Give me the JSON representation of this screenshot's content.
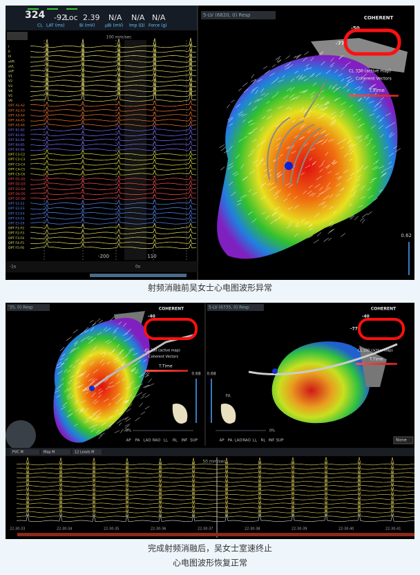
{
  "figure1": {
    "header": {
      "cl": "324",
      "cl_label": "CL",
      "lat": "-92",
      "lat_label": "LAT (ms)",
      "loc": "Loc",
      "bi": "2.39",
      "bi_label": "Bi (mV)",
      "ubi": "N/A",
      "ubi_label": "µBi (mV)",
      "imp": "N/A",
      "imp_label": "Imp (Ω)",
      "force": "N/A",
      "force_label": "Force (g)"
    },
    "ecg": {
      "speed": "100 mm/sec",
      "leads": [
        "I",
        "II",
        "III",
        "aVR",
        "aVL",
        "aVF",
        "V1",
        "V2",
        "V3",
        "V4",
        "V5",
        "V6",
        "OPT A1-A2",
        "OPT A2-A3",
        "OPT A3-A4",
        "OPT A4-A5",
        "OPT A5-A6",
        "OPT B1-B2",
        "OPT B2-B3",
        "OPT B3-B4",
        "OPT B4-B5",
        "OPT B5-B6",
        "OPT C1-C2",
        "OPT C2-C3",
        "OPT C3-C4",
        "OPT C4-C5",
        "OPT C5-C6",
        "OPT D1-D2",
        "OPT D2-D3",
        "OPT D3-D4",
        "OPT D4-D5",
        "OPT D5-D6",
        "OPT E1-E2",
        "OPT E2-E3",
        "OPT E3-E4",
        "OPT E4-E5",
        "OPT E5-E6",
        "OPT F1-F2",
        "OPT F2-F3",
        "OPT F3-F4",
        "OPT F4-F5",
        "OPT F5-F6"
      ],
      "start": "-1s",
      "mark_left": "-200",
      "zero": "0s",
      "mark_right": "110"
    },
    "map": {
      "title": "5-LV (6820, 0) Resp",
      "mode": "COHERENT",
      "scale_top": "-50",
      "scale_bottom": "-77",
      "cl": "CL   330   (active map)",
      "vectors": "Coherent Vectors",
      "ttime": "T.Time",
      "slider": "0.62"
    }
  },
  "caption1": "射频消融前吴女士心电图波形异常",
  "figure2": {
    "left_map": {
      "title": "'35, 0) Resp",
      "mode": "COHERENT",
      "scale_top": "-40",
      "cl": "CL    330   (active map)",
      "vectors": "Coherent Vectors",
      "ttime": "T.Time",
      "slider": "0.68",
      "percent": "0%"
    },
    "right_map": {
      "title": "5-LV (6735, 0) Resp",
      "mode": "COHERENT",
      "scale_top": "-40",
      "scale_bottom": "-77",
      "cl": "CL    330   (active map)",
      "ttime": "T.Time",
      "slider": "0.68",
      "percent": "0%",
      "view_label": "PA",
      "dropdown": "None"
    },
    "views": [
      "AP",
      "PA",
      "LAD",
      "RAO",
      "LL",
      "RL",
      "INF",
      "SUP"
    ],
    "toolbar": [
      "PVC M",
      "Map M",
      "12 Leads M"
    ],
    "speed": "50 mm/sec",
    "times": [
      "22:30:33",
      "22:30:34",
      "22:30:35",
      "22:30:36",
      "22:30:37",
      "22:30:38",
      "22:30:39",
      "22:30:40",
      "22:30:41"
    ]
  },
  "caption2": [
    "完成射频消融后，吴女士室速终止",
    "心电图波形恢复正常"
  ]
}
